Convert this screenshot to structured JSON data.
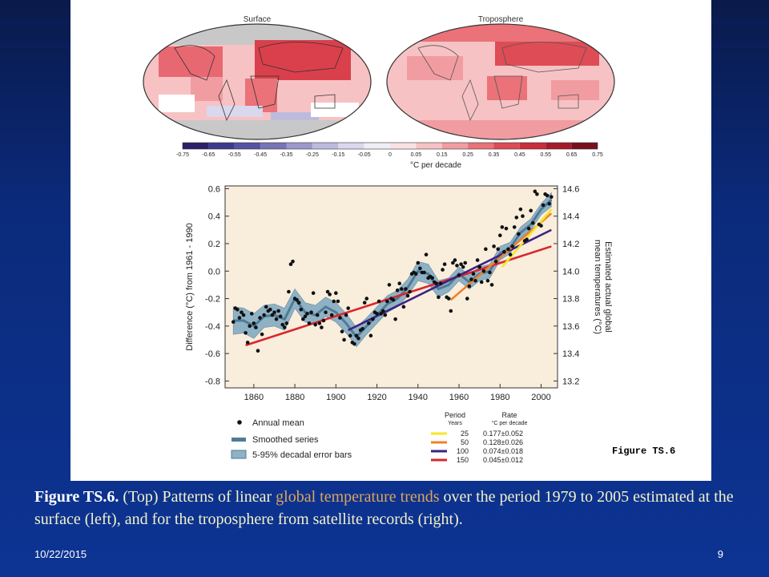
{
  "slide": {
    "date": "10/22/2015",
    "page_number": "9"
  },
  "caption": {
    "figure_label": "Figure TS.6.",
    "part1": " (Top) Patterns of linear ",
    "highlight": "global temperature trends",
    "part2": " over the period 1979 to 2005 estimated at the surface (left), and for the troposphere from satellite records (right)."
  },
  "maps": {
    "left_title": "Surface",
    "right_title": "Troposphere",
    "colorbar_ticks": [
      "-0.75",
      "-0.65",
      "-0.55",
      "-0.45",
      "-0.35",
      "-0.25",
      "-0.15",
      "-0.05",
      "0",
      "0.05",
      "0.15",
      "0.25",
      "0.35",
      "0.45",
      "0.55",
      "0.65",
      "0.75"
    ],
    "colorbar_colors": [
      "#2a1f6b",
      "#3b3a8c",
      "#5553a3",
      "#7673b7",
      "#9b98cb",
      "#bdbbdd",
      "#d9d8ec",
      "#eeeef6",
      "#fbe2e2",
      "#f7c2c4",
      "#f19ca1",
      "#ea7278",
      "#de4c55",
      "#c92e3a",
      "#a51b29",
      "#7a0f1c"
    ],
    "colorbar_unit": "°C per decade",
    "figure_tag": "Figure TS.6"
  },
  "chart_data": {
    "type": "scatter",
    "ylabel_left": "Difference (°C) from 1961 - 1990",
    "ylabel_right": "Estimated actual global mean temperatures (°C)",
    "xlim": [
      1846,
      2008
    ],
    "ylim": [
      -0.85,
      0.62
    ],
    "x_ticks": [
      1860,
      1880,
      1900,
      1920,
      1940,
      1960,
      1980,
      2000
    ],
    "y_ticks_left": [
      "0.6",
      "0.4",
      "0.2",
      "0.0",
      "-0.2",
      "-0.4",
      "-0.6",
      "-0.8"
    ],
    "y_ticks_right": [
      "14.6",
      "14.4",
      "14.2",
      "14.0",
      "13.8",
      "13.6",
      "13.4",
      "13.2"
    ],
    "colors": {
      "background": "#f9eddc",
      "band": "#8fb1c4",
      "smooth": "#4f7b96",
      "dots": "#111111"
    },
    "annual_mean": {
      "years": [
        1850,
        1851,
        1852,
        1853,
        1854,
        1855,
        1856,
        1857,
        1858,
        1859,
        1860,
        1861,
        1862,
        1863,
        1864,
        1865,
        1866,
        1867,
        1868,
        1869,
        1870,
        1871,
        1872,
        1873,
        1874,
        1875,
        1876,
        1877,
        1878,
        1879,
        1880,
        1881,
        1882,
        1883,
        1884,
        1885,
        1886,
        1887,
        1888,
        1889,
        1890,
        1891,
        1892,
        1893,
        1894,
        1895,
        1896,
        1897,
        1898,
        1899,
        1900,
        1901,
        1902,
        1903,
        1904,
        1905,
        1906,
        1907,
        1908,
        1909,
        1910,
        1911,
        1912,
        1913,
        1914,
        1915,
        1916,
        1917,
        1918,
        1919,
        1920,
        1921,
        1922,
        1923,
        1924,
        1925,
        1926,
        1927,
        1928,
        1929,
        1930,
        1931,
        1932,
        1933,
        1934,
        1935,
        1936,
        1937,
        1938,
        1939,
        1940,
        1941,
        1942,
        1943,
        1944,
        1945,
        1946,
        1947,
        1948,
        1949,
        1950,
        1951,
        1952,
        1953,
        1954,
        1955,
        1956,
        1957,
        1958,
        1959,
        1960,
        1961,
        1962,
        1963,
        1964,
        1965,
        1966,
        1967,
        1968,
        1969,
        1970,
        1971,
        1972,
        1973,
        1974,
        1975,
        1976,
        1977,
        1978,
        1979,
        1980,
        1981,
        1982,
        1983,
        1984,
        1985,
        1986,
        1987,
        1988,
        1989,
        1990,
        1991,
        1992,
        1993,
        1994,
        1995,
        1996,
        1997,
        1998,
        1999,
        2000,
        2001,
        2002,
        2003,
        2004,
        2005
      ],
      "values": [
        -0.37,
        -0.27,
        -0.28,
        -0.34,
        -0.3,
        -0.32,
        -0.45,
        -0.52,
        -0.4,
        -0.31,
        -0.38,
        -0.41,
        -0.58,
        -0.34,
        -0.46,
        -0.32,
        -0.26,
        -0.29,
        -0.28,
        -0.32,
        -0.3,
        -0.35,
        -0.29,
        -0.33,
        -0.39,
        -0.41,
        -0.38,
        -0.15,
        0.05,
        0.07,
        -0.2,
        -0.21,
        -0.23,
        -0.28,
        -0.35,
        -0.33,
        -0.31,
        -0.38,
        -0.3,
        -0.16,
        -0.39,
        -0.32,
        -0.38,
        -0.41,
        -0.36,
        -0.3,
        -0.15,
        -0.17,
        -0.32,
        -0.22,
        -0.16,
        -0.22,
        -0.34,
        -0.44,
        -0.5,
        -0.32,
        -0.27,
        -0.47,
        -0.52,
        -0.53,
        -0.47,
        -0.49,
        -0.43,
        -0.42,
        -0.23,
        -0.2,
        -0.38,
        -0.47,
        -0.35,
        -0.3,
        -0.31,
        -0.22,
        -0.31,
        -0.29,
        -0.32,
        -0.22,
        -0.1,
        -0.2,
        -0.21,
        -0.35,
        -0.14,
        -0.09,
        -0.13,
        -0.26,
        -0.13,
        -0.18,
        -0.15,
        -0.02,
        -0.01,
        -0.02,
        0.06,
        0.02,
        -0.01,
        -0.01,
        0.12,
        -0.05,
        -0.04,
        -0.05,
        -0.08,
        -0.09,
        -0.19,
        -0.09,
        0.01,
        0.05,
        -0.19,
        -0.2,
        -0.29,
        0.06,
        0.08,
        0.04,
        -0.03,
        0.05,
        0.03,
        0.06,
        -0.2,
        -0.11,
        -0.06,
        -0.02,
        -0.07,
        0.08,
        0.03,
        -0.08,
        0.0,
        0.16,
        -0.07,
        -0.01,
        -0.1,
        0.18,
        0.07,
        0.16,
        0.26,
        0.32,
        0.14,
        0.31,
        0.16,
        0.12,
        0.18,
        0.32,
        0.39,
        0.27,
        0.45,
        0.4,
        0.22,
        0.23,
        0.31,
        0.44,
        0.35,
        0.58,
        0.56,
        0.34,
        0.33,
        0.48,
        0.56,
        0.55,
        0.49,
        0.54
      ]
    },
    "smoothed_series": {
      "years": [
        1850,
        1855,
        1860,
        1865,
        1870,
        1875,
        1880,
        1885,
        1890,
        1895,
        1900,
        1905,
        1910,
        1915,
        1920,
        1925,
        1930,
        1935,
        1940,
        1945,
        1950,
        1955,
        1960,
        1965,
        1970,
        1975,
        1980,
        1985,
        1990,
        1995,
        2000,
        2005
      ],
      "values": [
        -0.36,
        -0.36,
        -0.4,
        -0.33,
        -0.32,
        -0.35,
        -0.2,
        -0.3,
        -0.32,
        -0.26,
        -0.3,
        -0.38,
        -0.48,
        -0.4,
        -0.32,
        -0.24,
        -0.2,
        -0.12,
        0.0,
        -0.02,
        -0.13,
        -0.1,
        -0.02,
        -0.08,
        -0.02,
        0.0,
        0.13,
        0.17,
        0.28,
        0.34,
        0.45,
        0.52
      ],
      "error_halfwidth": [
        0.1,
        0.09,
        0.09,
        0.08,
        0.08,
        0.08,
        0.07,
        0.07,
        0.07,
        0.07,
        0.07,
        0.07,
        0.07,
        0.06,
        0.06,
        0.06,
        0.06,
        0.06,
        0.07,
        0.07,
        0.06,
        0.05,
        0.05,
        0.05,
        0.05,
        0.05,
        0.05,
        0.04,
        0.04,
        0.04,
        0.04,
        0.05
      ]
    },
    "trend_lines": [
      {
        "years": "150",
        "rate": "0.045±0.012",
        "color": "#d9262e",
        "x": [
          1856,
          2005
        ],
        "y": [
          -0.54,
          0.18
        ]
      },
      {
        "years": "100",
        "rate": "0.074±0.018",
        "color": "#3c2383",
        "x": [
          1906,
          2005
        ],
        "y": [
          -0.43,
          0.3
        ]
      },
      {
        "years": "50",
        "rate": "0.128±0.026",
        "color": "#f0812a",
        "x": [
          1956,
          2005
        ],
        "y": [
          -0.21,
          0.42
        ]
      },
      {
        "years": "25",
        "rate": "0.177±0.052",
        "color": "#f5e625",
        "x": [
          1981,
          2005
        ],
        "y": [
          0.03,
          0.45
        ]
      }
    ],
    "legend": {
      "annual_mean": "Annual mean",
      "smoothed": "Smoothed series",
      "error_bars": "5-95% decadal error bars",
      "period_header": "Period",
      "period_sub": "Years",
      "rate_header": "Rate",
      "rate_sub": "°C  per decade"
    }
  }
}
